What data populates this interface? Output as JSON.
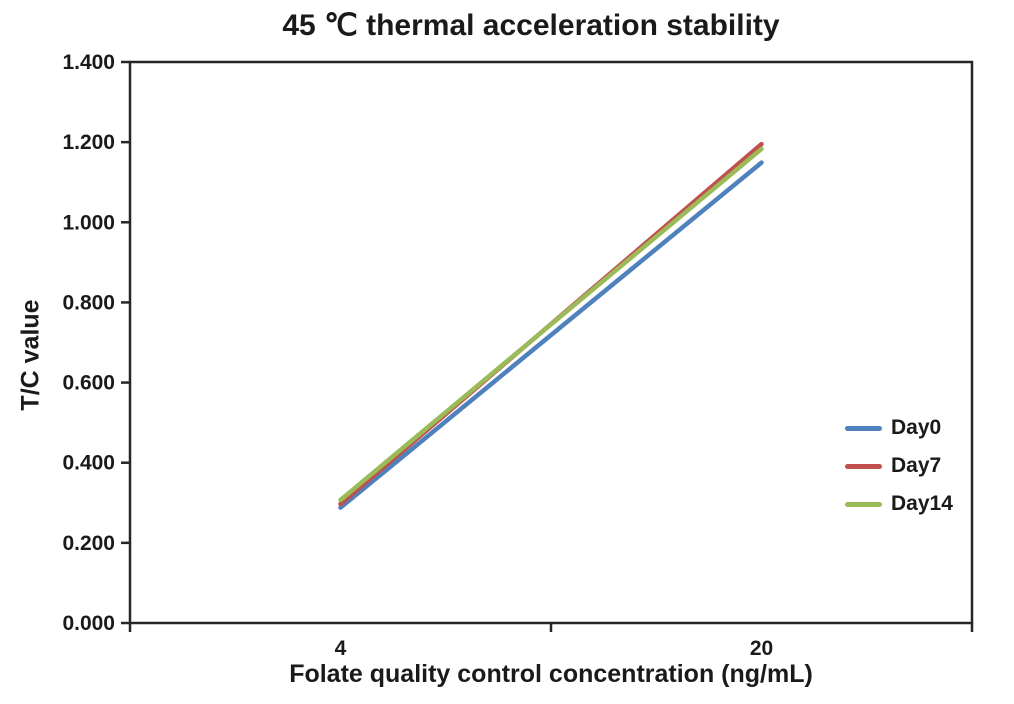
{
  "title": "45 ℃ thermal acceleration stability",
  "colors": {
    "background": "#ffffff",
    "axis": "#262626",
    "text": "#1a1a1a"
  },
  "chart_data": {
    "type": "line",
    "title": "45 ℃ thermal acceleration stability",
    "xlabel": "Folate quality control concentration (ng/mL)",
    "ylabel": "T/C value",
    "categories": [
      "4",
      "20"
    ],
    "series": [
      {
        "name": "Day0",
        "color": "#4F81BD",
        "values": [
          0.288,
          1.149
        ]
      },
      {
        "name": "Day7",
        "color": "#C0504D",
        "values": [
          0.297,
          1.195
        ]
      },
      {
        "name": "Day14",
        "color": "#9BBB59",
        "values": [
          0.307,
          1.183
        ]
      }
    ],
    "ylim": [
      0,
      1.4
    ],
    "ytick_step": 0.2,
    "ytick_labels": [
      "0.000",
      "0.200",
      "0.400",
      "0.600",
      "0.800",
      "1.000",
      "1.200",
      "1.400"
    ],
    "grid": false,
    "plot_border": "box",
    "legend_position": "inside-right"
  }
}
